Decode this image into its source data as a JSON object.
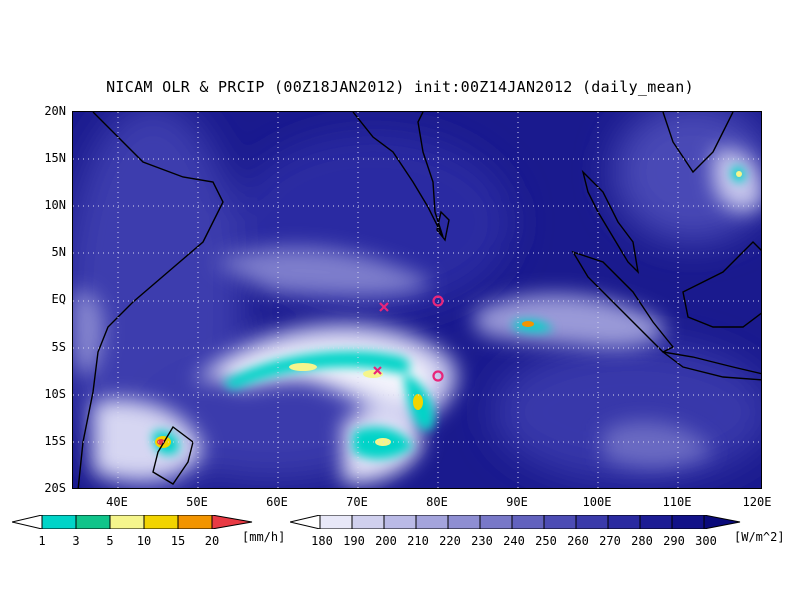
{
  "title": "NICAM OLR & PRCIP (00Z18JAN2012) init:00Z14JAN2012 (daily_mean)",
  "lat_ticks": [
    "20N",
    "15N",
    "10N",
    "5N",
    "EQ",
    "5S",
    "10S",
    "15S",
    "20S"
  ],
  "lon_ticks": [
    "40E",
    "50E",
    "60E",
    "70E",
    "80E",
    "90E",
    "100E",
    "110E",
    "120E"
  ],
  "precip_bar": {
    "labels": [
      "1",
      "3",
      "5",
      "10",
      "15",
      "20"
    ],
    "unit": "[mm/h]",
    "colors": [
      "#00d4c8",
      "#10c48a",
      "#f5f58c",
      "#f2d400",
      "#f29400",
      "#e83a44"
    ]
  },
  "olr_bar": {
    "labels": [
      "180",
      "190",
      "200",
      "210",
      "220",
      "230",
      "240",
      "250",
      "260",
      "270",
      "280",
      "290",
      "300"
    ],
    "unit": "[W/m^2]",
    "colors": [
      "#e8e8f8",
      "#d0d0ee",
      "#babae6",
      "#a4a4dc",
      "#8e8ed2",
      "#7878c8",
      "#6262be",
      "#4c4cb4",
      "#3a3aaa",
      "#2a2aa0",
      "#1c1c94",
      "#121288",
      "#0a0a7a"
    ]
  },
  "markers": [
    {
      "type": "x",
      "lon": 73,
      "lat": -0.5,
      "color": "#e8257a"
    },
    {
      "type": "o",
      "lon": 80,
      "lat": 0,
      "color": "#e8257a"
    },
    {
      "type": "x",
      "lon": 72.5,
      "lat": -7.5,
      "color": "#e8257a"
    },
    {
      "type": "o",
      "lon": 80,
      "lat": -8,
      "color": "#e8257a"
    }
  ]
}
